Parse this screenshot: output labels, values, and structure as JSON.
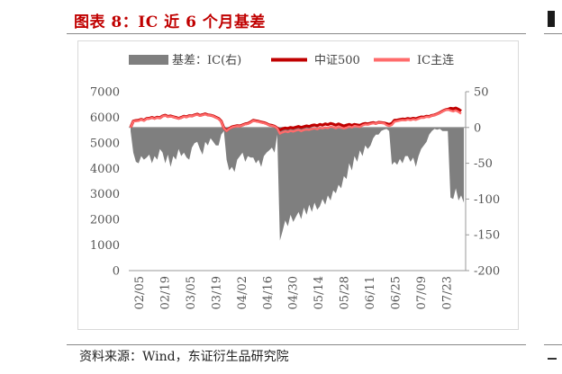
{
  "figure": {
    "title": "图表 8：IC 近 6 个月基差",
    "source": "资料来源：Wind，东证衍生品研究院"
  },
  "colors": {
    "basis_fill": "#7f7f7f",
    "index_line": "#c00000",
    "futures_line": "#ff6b6b",
    "title": "#c00000"
  },
  "chart_data": {
    "type": "line",
    "title": "",
    "xlabel": "",
    "ylabel": "",
    "ylabel_right": "",
    "ylim": [
      0,
      7000
    ],
    "ylim_right": [
      -200,
      50
    ],
    "yticks": [
      "0",
      "1000",
      "2000",
      "3000",
      "4000",
      "5000",
      "6000",
      "7000"
    ],
    "yticks_right": [
      "-200",
      "-150",
      "-100",
      "-50",
      "0",
      "50"
    ],
    "legend_position": "top",
    "x_tick_labels": [
      "02/05",
      "02/19",
      "03/05",
      "03/19",
      "04/02",
      "04/16",
      "04/30",
      "05/14",
      "05/28",
      "06/11",
      "06/25",
      "07/09",
      "07/23"
    ],
    "series": [
      {
        "name": "基差：IC(右)",
        "kind": "area",
        "axis": "right",
        "values": [
          -5,
          -35,
          -48,
          -50,
          -40,
          -45,
          -42,
          -38,
          -50,
          -40,
          -45,
          -30,
          -35,
          -50,
          -38,
          -55,
          -40,
          -45,
          -30,
          -40,
          -35,
          -42,
          -45,
          -28,
          -22,
          -20,
          -30,
          -38,
          -20,
          -25,
          -15,
          -20,
          -25,
          -25,
          -10,
          -5,
          -45,
          -60,
          -55,
          -62,
          -45,
          -40,
          -35,
          -48,
          -40,
          -42,
          -42,
          -50,
          -45,
          -55,
          -40,
          -35,
          -32,
          -28,
          -35,
          -10,
          -158,
          -145,
          -130,
          -138,
          -122,
          -132,
          -125,
          -118,
          -128,
          -112,
          -122,
          -108,
          -118,
          -105,
          -115,
          -110,
          -100,
          -108,
          -95,
          -102,
          -88,
          -92,
          -80,
          -85,
          -68,
          -72,
          -50,
          -60,
          -40,
          -48,
          -32,
          -40,
          -25,
          -30,
          -25,
          -15,
          -10,
          -10,
          -5,
          -3,
          -2,
          -5,
          -52,
          -48,
          -52,
          -44,
          -50,
          -40,
          -40,
          -48,
          -42,
          -55,
          -40,
          -30,
          -25,
          -20,
          -10,
          -5,
          -2,
          -3,
          -2,
          -5,
          -5,
          -5,
          -98,
          -100,
          -85,
          -102,
          -95,
          -105
        ]
      },
      {
        "name": "中证500",
        "kind": "line",
        "axis": "left",
        "values": [
          5600,
          5850,
          5870,
          5880,
          5920,
          5880,
          5950,
          5960,
          5990,
          5960,
          6000,
          5980,
          6050,
          6080,
          6030,
          6050,
          6020,
          5990,
          5960,
          5990,
          6040,
          6020,
          6060,
          6050,
          6090,
          6120,
          6070,
          6100,
          6130,
          6090,
          6080,
          6050,
          6000,
          5950,
          5850,
          5580,
          5480,
          5560,
          5620,
          5650,
          5670,
          5660,
          5700,
          5740,
          5760,
          5810,
          5880,
          5860,
          5840,
          5810,
          5790,
          5750,
          5700,
          5680,
          5650,
          5580,
          5500,
          5550,
          5580,
          5560,
          5600,
          5580,
          5610,
          5640,
          5600,
          5630,
          5660,
          5640,
          5680,
          5700,
          5670,
          5720,
          5690,
          5740,
          5710,
          5760,
          5730,
          5690,
          5740,
          5700,
          5660,
          5690,
          5720,
          5680,
          5720,
          5700,
          5680,
          5730,
          5760,
          5740,
          5770,
          5790,
          5760,
          5800,
          5790,
          5780,
          5750,
          5720,
          5760,
          5880,
          5890,
          5910,
          5930,
          5920,
          5950,
          5930,
          5960,
          5940,
          5980,
          6010,
          6000,
          6040,
          6030,
          6070,
          6090,
          6130,
          6180,
          6240,
          6290,
          6310,
          6350,
          6330,
          6360,
          6310,
          6240
        ]
      },
      {
        "name": "IC主连",
        "kind": "line",
        "axis": "left",
        "values": [
          5595,
          5838,
          5855,
          5862,
          5908,
          5866,
          5938,
          5948,
          5975,
          5946,
          5986,
          5968,
          6036,
          6062,
          6018,
          6034,
          6008,
          5978,
          5948,
          5976,
          6026,
          6008,
          6046,
          6038,
          6074,
          6102,
          6056,
          6084,
          6114,
          6078,
          6070,
          6040,
          5986,
          5934,
          5836,
          5562,
          5464,
          5546,
          5604,
          5634,
          5654,
          5646,
          5684,
          5724,
          5742,
          5792,
          5864,
          5844,
          5826,
          5794,
          5774,
          5736,
          5688,
          5664,
          5638,
          5570,
          5360,
          5410,
          5450,
          5420,
          5470,
          5440,
          5480,
          5510,
          5460,
          5500,
          5520,
          5510,
          5540,
          5570,
          5530,
          5590,
          5560,
          5600,
          5580,
          5630,
          5610,
          5570,
          5620,
          5590,
          5560,
          5590,
          5640,
          5600,
          5660,
          5640,
          5620,
          5680,
          5720,
          5710,
          5740,
          5770,
          5750,
          5790,
          5780,
          5770,
          5690,
          5660,
          5700,
          5830,
          5850,
          5870,
          5890,
          5880,
          5910,
          5890,
          5920,
          5900,
          5940,
          5980,
          5980,
          6020,
          6010,
          6060,
          6080,
          6120,
          6170,
          6230,
          6280,
          6300,
          6260,
          6230,
          6270,
          6210,
          6140
        ]
      }
    ]
  }
}
